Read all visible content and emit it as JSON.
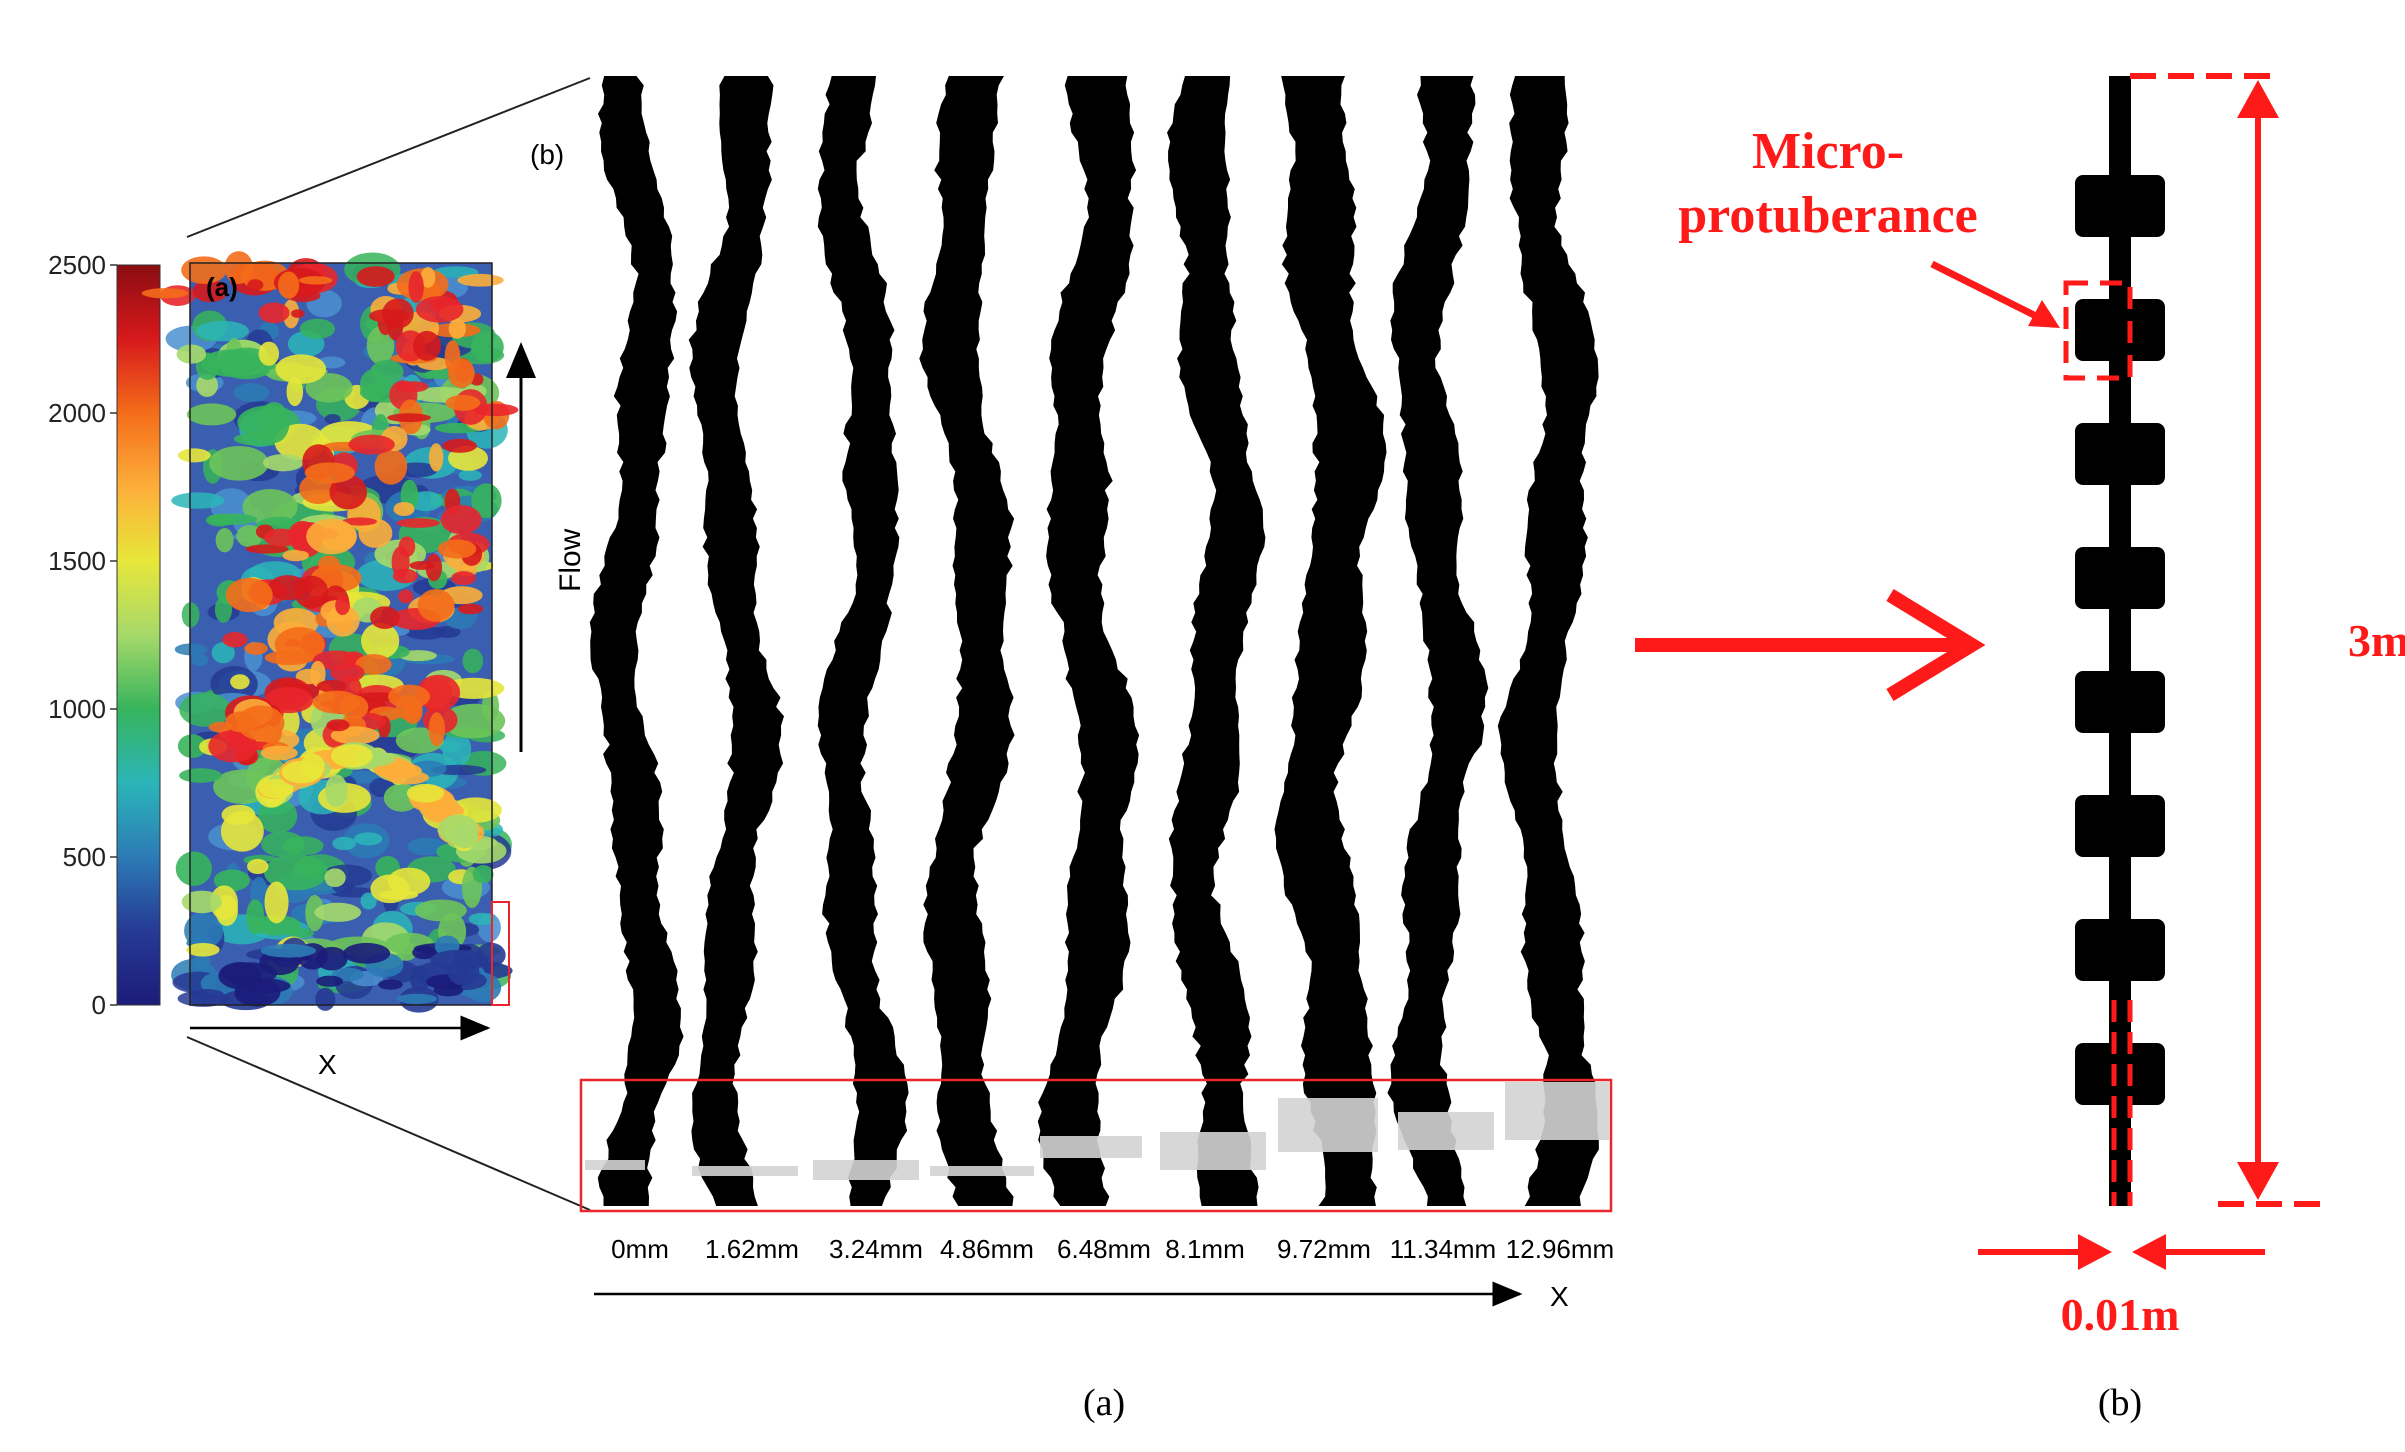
{
  "left_figure": {
    "panel_a_label": "(a)",
    "panel_b_label": "(b)",
    "colorbar_ticks": [
      "2500",
      "2000",
      "1500",
      "1000",
      "500",
      "0"
    ],
    "colorbar_colors": [
      "#8b0d12",
      "#d7191c",
      "#f46d1a",
      "#fdae3a",
      "#e7e73a",
      "#a6d96a",
      "#37b45c",
      "#2bb5b8",
      "#2c7bb6",
      "#263a94",
      "#1c1c7a"
    ],
    "flow_label": "Flow",
    "x_axis_label_small": "X",
    "x_axis_label_large": "X",
    "positions": [
      "0mm",
      "1.62mm",
      "3.24mm",
      "4.86mm",
      "6.48mm",
      "8.1mm",
      "9.72mm",
      "11.34mm",
      "12.96mm"
    ],
    "caption": "(a)"
  },
  "right_figure": {
    "micro_label_line1": "Micro-",
    "micro_label_line2": "protuberance",
    "length_label": "3m",
    "width_label": "0.01m",
    "caption": "(b)",
    "protuberance_count": 8,
    "accent_color": "#ff1a1a"
  }
}
